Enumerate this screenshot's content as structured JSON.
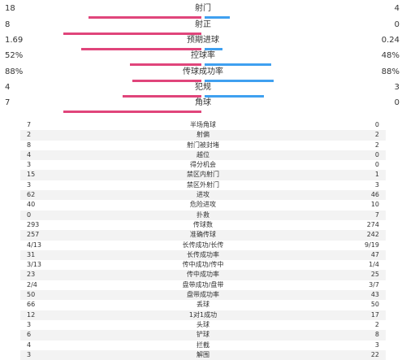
{
  "bars": [
    {
      "label": "射门",
      "left": "18",
      "right": "4",
      "lf": 0.82,
      "rf": 0.18
    },
    {
      "label": "射正",
      "left": "8",
      "right": "0",
      "lf": 1.0,
      "rf": 0.0
    },
    {
      "label": "预期进球",
      "left": "1.69",
      "right": "0.24",
      "lf": 0.87,
      "rf": 0.13
    },
    {
      "label": "控球率",
      "left": "52%",
      "right": "48%",
      "lf": 0.52,
      "rf": 0.48
    },
    {
      "label": "传球成功率",
      "left": "88%",
      "right": "88%",
      "lf": 0.5,
      "rf": 0.5
    },
    {
      "label": "犯规",
      "left": "4",
      "right": "3",
      "lf": 0.57,
      "rf": 0.43
    },
    {
      "label": "角球",
      "left": "7",
      "right": "0",
      "lf": 1.0,
      "rf": 0.0
    }
  ],
  "table": [
    {
      "label": "半场角球",
      "left": "7",
      "right": "0"
    },
    {
      "label": "射偏",
      "left": "2",
      "right": "2"
    },
    {
      "label": "射门被封堵",
      "left": "8",
      "right": "2"
    },
    {
      "label": "越位",
      "left": "4",
      "right": "0"
    },
    {
      "label": "得分机会",
      "left": "3",
      "right": "0"
    },
    {
      "label": "禁区内射门",
      "left": "15",
      "right": "1"
    },
    {
      "label": "禁区外射门",
      "left": "3",
      "right": "3"
    },
    {
      "label": "进攻",
      "left": "62",
      "right": "46"
    },
    {
      "label": "危险进攻",
      "left": "40",
      "right": "10"
    },
    {
      "label": "扑救",
      "left": "0",
      "right": "7"
    },
    {
      "label": "传球数",
      "left": "293",
      "right": "274"
    },
    {
      "label": "准确传球",
      "left": "257",
      "right": "242"
    },
    {
      "label": "长传成功/长传",
      "left": "4/13",
      "right": "9/19"
    },
    {
      "label": "长传成功率",
      "left": "31",
      "right": "47"
    },
    {
      "label": "传中成功/传中",
      "left": "3/13",
      "right": "1/4"
    },
    {
      "label": "传中成功率",
      "left": "23",
      "right": "25"
    },
    {
      "label": "盘带成功/盘带",
      "left": "2/4",
      "right": "3/7"
    },
    {
      "label": "盘带成功率",
      "left": "50",
      "right": "43"
    },
    {
      "label": "丢球",
      "left": "66",
      "right": "50"
    },
    {
      "label": "1对1成功",
      "left": "12",
      "right": "17"
    },
    {
      "label": "头球",
      "left": "3",
      "right": "2"
    },
    {
      "label": "铲球",
      "left": "6",
      "right": "8"
    },
    {
      "label": "拦截",
      "left": "4",
      "right": "3"
    },
    {
      "label": "解围",
      "left": "3",
      "right": "22"
    }
  ],
  "colors": {
    "home": "#e0457b",
    "away": "#3fa0f0"
  }
}
